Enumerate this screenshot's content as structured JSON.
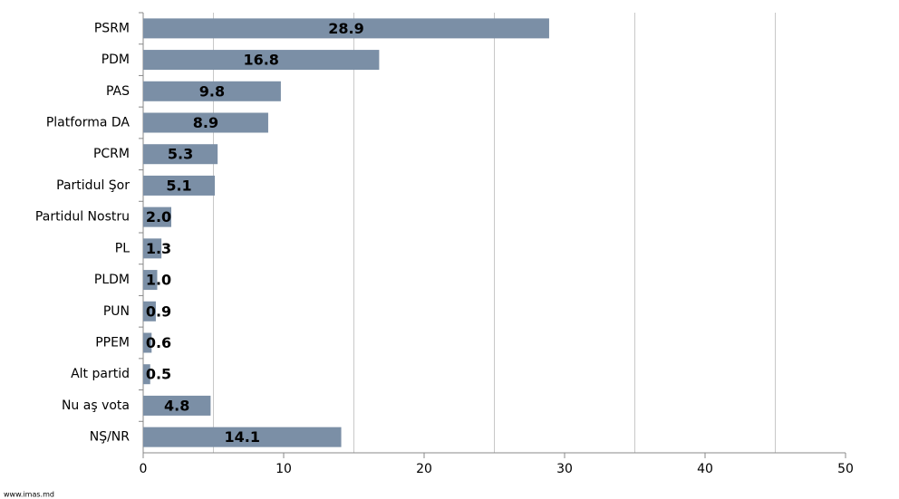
{
  "chart_data": {
    "type": "hbar",
    "categories": [
      "PSRM",
      "PDM",
      "PAS",
      "Platforma DA",
      "PCRM",
      "Partidul Şor",
      "Partidul Nostru",
      "PL",
      "PLDM",
      "PUN",
      "PPEM",
      "Alt partid",
      "Nu aş vota",
      "NŞ/NR"
    ],
    "values": [
      28.9,
      16.8,
      9.8,
      8.9,
      5.3,
      5.1,
      2.0,
      1.3,
      1.0,
      0.9,
      0.6,
      0.5,
      4.8,
      14.1
    ],
    "value_labels": [
      "28.9",
      "16.8",
      "9.8",
      "8.9",
      "5.3",
      "5.1",
      "2.0",
      "1.3",
      "1.0",
      "0.9",
      "0.6",
      "0.5",
      "4.8",
      "14.1"
    ],
    "color": "#7b8fa6",
    "xlim": [
      0,
      50
    ],
    "xticks": [
      0,
      10,
      20,
      30,
      40,
      50
    ],
    "gridlines": [
      5,
      15,
      25,
      35,
      45
    ],
    "source": "www.imas.md"
  }
}
